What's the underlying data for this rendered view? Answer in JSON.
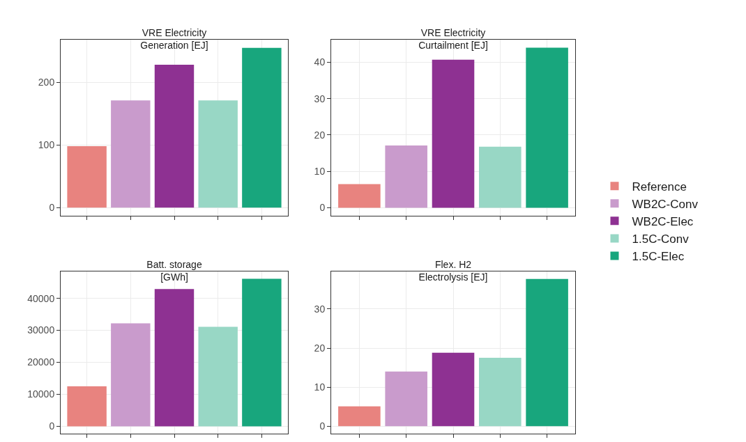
{
  "chart_data": [
    {
      "type": "bar",
      "title": "VRE Electricity\nGeneration [EJ]",
      "categories": [
        null,
        null,
        null,
        null,
        null
      ],
      "series": [
        {
          "color": "#e8837f",
          "values": [
            98,
            null,
            null,
            null,
            null
          ]
        },
        {
          "color": "#c99bcc",
          "values": [
            null,
            171,
            null,
            null,
            null
          ]
        },
        {
          "color": "#8e3192",
          "values": [
            null,
            null,
            228,
            null,
            null
          ]
        },
        {
          "color": "#98d7c5",
          "values": [
            null,
            null,
            null,
            171,
            null
          ]
        },
        {
          "color": "#18a67d",
          "values": [
            null,
            null,
            null,
            null,
            255
          ]
        }
      ],
      "ylim": [
        -13,
        268
      ],
      "yticks": [
        0,
        100,
        200
      ],
      "grid": true,
      "tick_labels": "y",
      "legend": false
    },
    {
      "type": "bar",
      "title": "VRE Electricity\nCurtailment [EJ]",
      "categories": [
        null,
        null,
        null,
        null,
        null
      ],
      "series": [
        {
          "name": "Reference",
          "color": "#e8837f",
          "values": [
            6.5,
            null,
            null,
            null,
            null
          ]
        },
        {
          "name": "WB2C-Conv",
          "color": "#c99bcc",
          "values": [
            null,
            17.1,
            null,
            null,
            null
          ]
        },
        {
          "name": "WB2C-Elec",
          "color": "#8e3192",
          "values": [
            null,
            null,
            40.7,
            null,
            null
          ]
        },
        {
          "name": "1.5C-Conv",
          "color": "#98d7c5",
          "values": [
            null,
            null,
            null,
            16.8,
            null
          ]
        },
        {
          "name": "1.5C-Elec",
          "color": "#18a67d",
          "values": [
            null,
            null,
            null,
            null,
            44.0
          ]
        }
      ],
      "ylim": [
        -2.2,
        46.2
      ],
      "yticks": [
        0,
        10,
        20,
        30,
        40
      ],
      "grid": true,
      "tick_labels": "y",
      "legend": "right"
    },
    {
      "type": "bar",
      "title": "Batt. storage\n[GWh]",
      "categories": [
        null,
        null,
        null,
        null,
        null
      ],
      "series": [
        {
          "color": "#e8837f",
          "values": [
            12500,
            null,
            null,
            null,
            null
          ]
        },
        {
          "color": "#c99bcc",
          "values": [
            null,
            32200,
            null,
            null,
            null
          ]
        },
        {
          "color": "#8e3192",
          "values": [
            null,
            null,
            42900,
            null,
            null
          ]
        },
        {
          "color": "#98d7c5",
          "values": [
            null,
            null,
            null,
            31100,
            null
          ]
        },
        {
          "color": "#18a67d",
          "values": [
            null,
            null,
            null,
            null,
            46100
          ]
        }
      ],
      "ylim": [
        -2300,
        48400
      ],
      "yticks": [
        0,
        10000,
        20000,
        30000,
        40000
      ],
      "grid": true,
      "tick_labels": "y",
      "legend": false
    },
    {
      "type": "bar",
      "title": "Flex. H2\nElectrolysis [EJ]",
      "categories": [
        null,
        null,
        null,
        null,
        null
      ],
      "series": [
        {
          "color": "#e8837f",
          "values": [
            5.1,
            null,
            null,
            null,
            null
          ]
        },
        {
          "color": "#c99bcc",
          "values": [
            null,
            14.0,
            null,
            null,
            null
          ]
        },
        {
          "color": "#8e3192",
          "values": [
            null,
            null,
            18.8,
            null,
            null
          ]
        },
        {
          "color": "#98d7c5",
          "values": [
            null,
            null,
            null,
            17.5,
            null
          ]
        },
        {
          "color": "#18a67d",
          "values": [
            null,
            null,
            null,
            null,
            37.7
          ]
        }
      ],
      "ylim": [
        -1.9,
        39.6
      ],
      "yticks": [
        0,
        10,
        20,
        30
      ],
      "grid": true,
      "tick_labels": "y",
      "legend": false
    }
  ]
}
